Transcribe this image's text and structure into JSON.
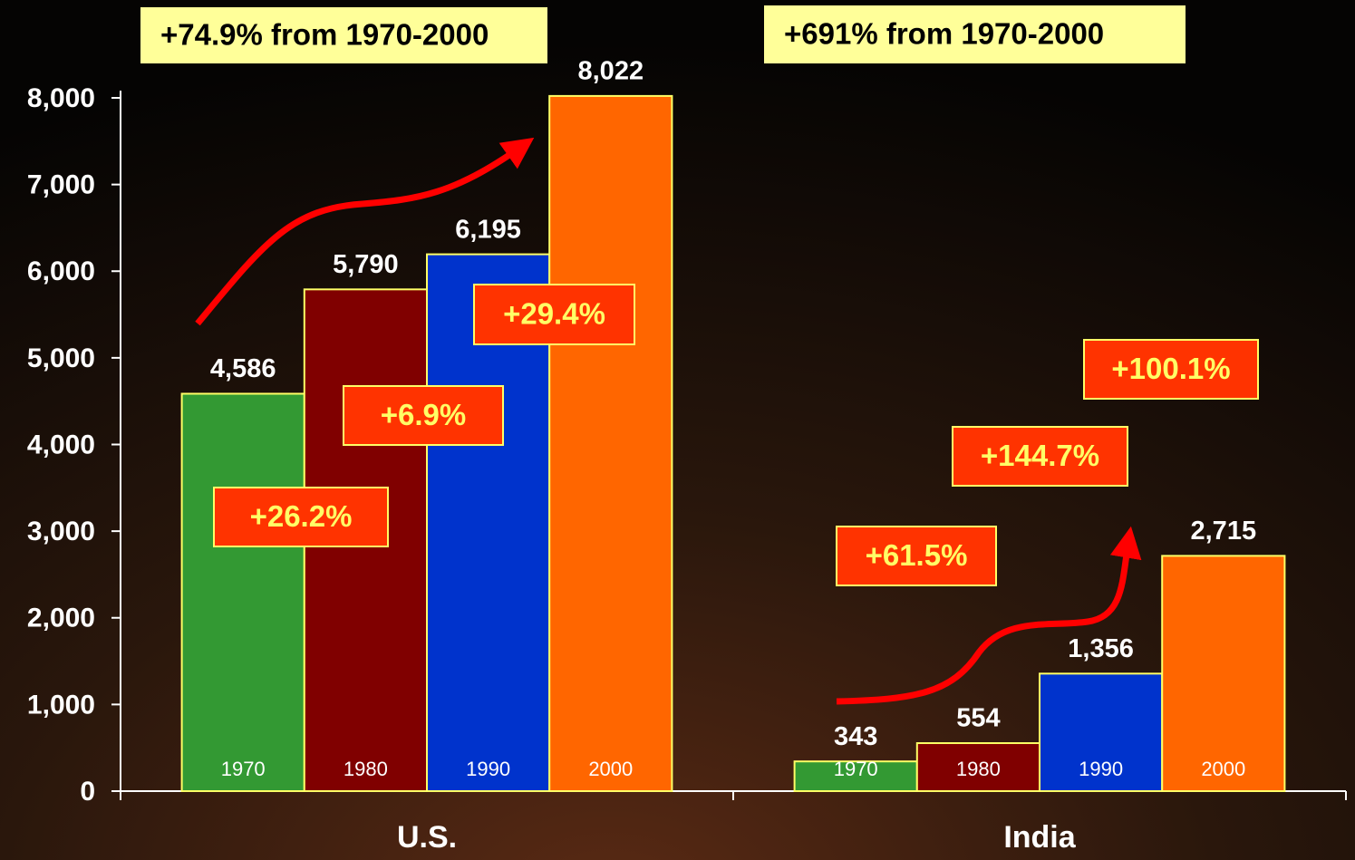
{
  "chart_data": {
    "type": "bar",
    "categories": [
      "U.S.",
      "India"
    ],
    "series": [
      {
        "name": "1970",
        "color": "#339933",
        "values": [
          4586,
          343
        ],
        "value_labels": [
          "4,586",
          "343"
        ]
      },
      {
        "name": "1980",
        "color": "#800000",
        "values": [
          5790,
          554
        ],
        "value_labels": [
          "5,790",
          "554"
        ]
      },
      {
        "name": "1990",
        "color": "#0033cc",
        "values": [
          6195,
          1356
        ],
        "value_labels": [
          "6,195",
          "1,356"
        ]
      },
      {
        "name": "2000",
        "color": "#ff6600",
        "values": [
          8022,
          2715
        ],
        "value_labels": [
          "8,022",
          "2,715"
        ]
      }
    ],
    "ylim": [
      0,
      8000
    ],
    "yticks": [
      0,
      {
        "value": 1000,
        "label": "1,000"
      },
      {
        "value": 2000,
        "label": "2,000"
      },
      {
        "value": 3000,
        "label": "3,000"
      },
      {
        "value": 4000,
        "label": "4,000"
      },
      {
        "value": 5000,
        "label": "5,000"
      },
      {
        "value": 6000,
        "label": "6,000"
      },
      {
        "value": 7000,
        "label": "7,000"
      },
      {
        "value": 8000,
        "label": "8,000"
      }
    ],
    "headline_annotations": [
      "+74.9% from 1970-2000",
      "+691% from 1970-2000"
    ],
    "change_annotations": [
      "+26.2%",
      "+6.9%",
      "+29.4%",
      "+61.5%",
      "+144.7%",
      "+100.1%"
    ]
  }
}
